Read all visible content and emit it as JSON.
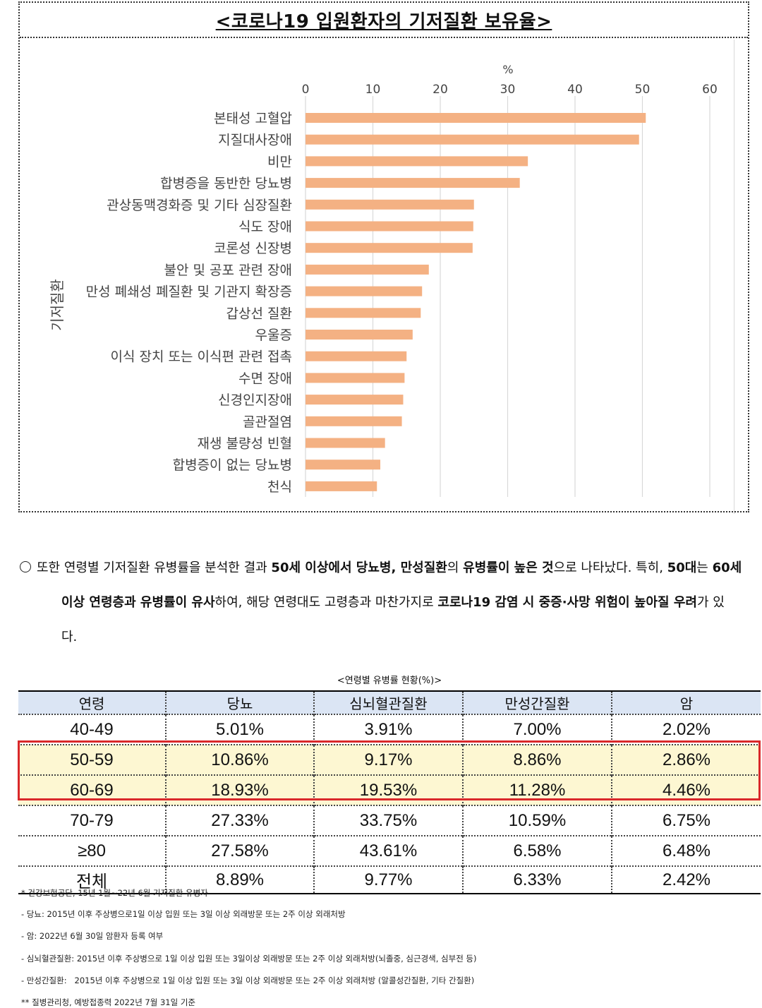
{
  "chart_data": {
    "type": "bar",
    "orientation": "horizontal",
    "title": "<코로나19 입원환자의 기저질환 보유율>",
    "xlabel": "%",
    "ylabel": "기저질환",
    "xlim": [
      0,
      60
    ],
    "xticks": [
      "0",
      "10",
      "20",
      "30",
      "40",
      "50",
      "60"
    ],
    "categories": [
      "본태성 고혈압",
      "지질대사장애",
      "비만",
      "합병증을 동반한 당뇨병",
      "관상동맥경화증 및 기타 심장질환",
      "식도 장애",
      "코론성 신장병",
      "불안 및 공포 관련 장애",
      "만성 폐쇄성 폐질환 및 기관지 확장증",
      "갑상선 질환",
      "우울증",
      "이식 장치 또는 이식편 관련 접촉",
      "수면 장애",
      "신경인지장애",
      "골관절염",
      "재생 불량성 빈혈",
      "합병증이 없는 당뇨병",
      "천식"
    ],
    "values": [
      50.5,
      49.5,
      33,
      31.8,
      25,
      24.9,
      24.8,
      18.3,
      17.3,
      17.1,
      15.9,
      15,
      14.7,
      14.5,
      14.3,
      11.8,
      11.1,
      10.6
    ],
    "bar_color": "#f4b183",
    "grid": true
  },
  "paragraph": {
    "bullet": "○",
    "line1": [
      {
        "t": "또한 연령별 기저질환 유병률을 분석한 결과 ",
        "b": false
      },
      {
        "t": "50세 이상에서 당뇨병, ",
        "b": true
      },
      {
        "t": "만성질환",
        "b": true
      },
      {
        "t": "의 ",
        "b": false
      },
      {
        "t": "유병률이 높은 것",
        "b": true
      },
      {
        "t": "으로 나타났다. 특히, ",
        "b": false
      },
      {
        "t": "50대",
        "b": true
      },
      {
        "t": "는 ",
        "b": false
      },
      {
        "t": "60세",
        "b": true
      }
    ],
    "line2": [
      {
        "t": "이상 연령층과 유병률이 유사",
        "b": true
      },
      {
        "t": "하여, 해당 연령대도 고령층과 마찬가지로 ",
        "b": false
      },
      {
        "t": "코로나19 감염 시 중증·사망 위험이 높아질 우려",
        "b": true
      },
      {
        "t": "가 있",
        "b": false
      }
    ],
    "line3": [
      {
        "t": "다.",
        "b": false
      }
    ]
  },
  "table": {
    "caption": "<연령별 유병률 현황(%)>",
    "headers": [
      "연령",
      "당뇨",
      "심뇌혈관질환",
      "만성간질환",
      "암"
    ],
    "rows": [
      [
        "40-49",
        "5.01%",
        "3.91%",
        "7.00%",
        "2.02%"
      ],
      [
        "50-59",
        "10.86%",
        "9.17%",
        "8.86%",
        "2.86%"
      ],
      [
        "60-69",
        "18.93%",
        "19.53%",
        "11.28%",
        "4.46%"
      ],
      [
        "70-79",
        "27.33%",
        "33.75%",
        "10.59%",
        "6.75%"
      ],
      [
        "≥80",
        "27.58%",
        "43.61%",
        "6.58%",
        "6.48%"
      ],
      [
        "전체",
        "8.89%",
        "9.77%",
        "6.33%",
        "2.42%"
      ]
    ],
    "highlighted_rows": [
      "50-59",
      "60-69"
    ],
    "highlight_color": "#d9282a"
  },
  "notes": [
    "* 건강보험공단, 15년 1월~22년 6월 기저질환 유병자",
    "- 당뇨: 2015년 이후 주상병으로1일 이상 입원 또는 3일 이상 외래방문 또는 2주 이상 외래처방",
    "- 암: 2022년 6월 30일 암환자 등록 여부",
    "- 심뇌혈관질환: 2015년 이후 주상병으로 1일 이상 입원 또는 3일이상 외래방문 또는 2주 이상 외래처방(뇌졸중, 심근경색, 심부전 등)",
    "- 만성간질환:   2015년 이후 주상병으로 1일 이상 입원 또는 3일 이상 외래방문 또는 2주 이상 외래처방 (알콜성간질환, 기타 간질환)",
    "** 질병관리청, 예방접종력 2022년 7월 31일 기준"
  ]
}
